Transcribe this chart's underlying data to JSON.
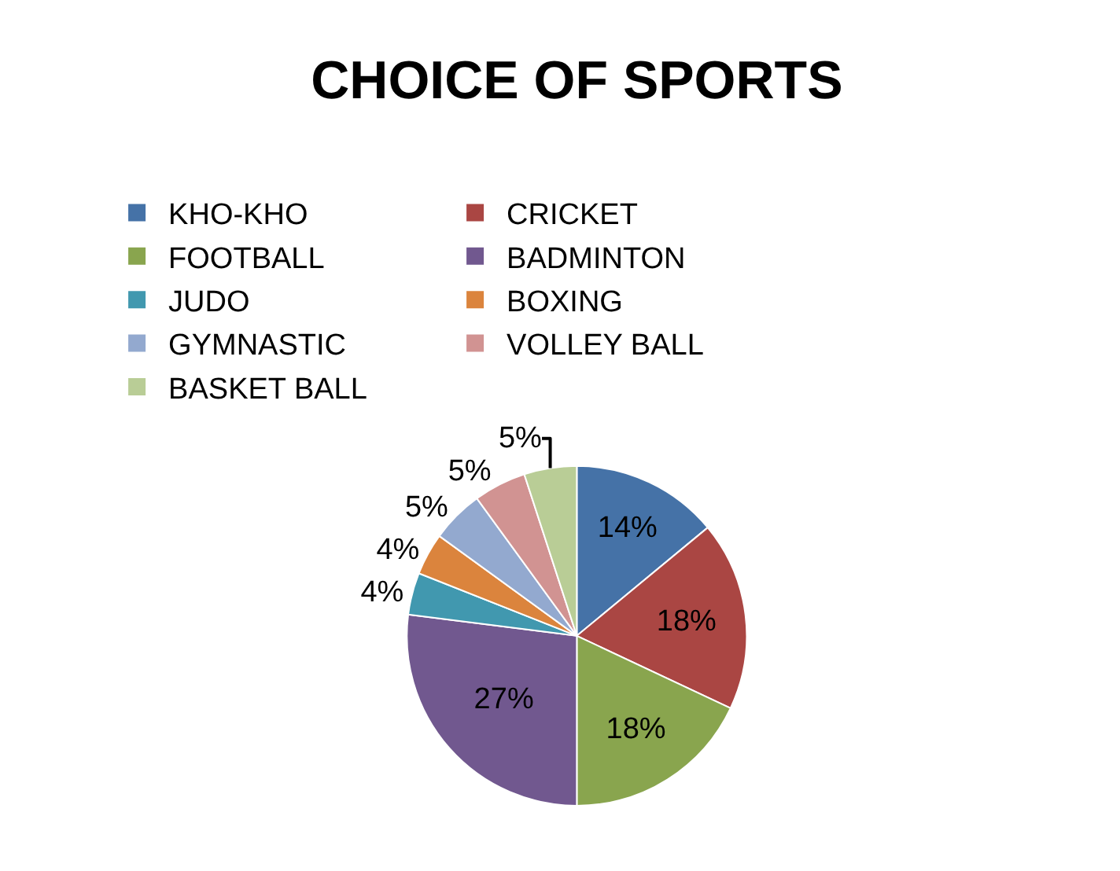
{
  "chart_data": {
    "type": "pie",
    "title": "CHOICE OF SPORTS",
    "categories": [
      "KHO-KHO",
      "CRICKET",
      "FOOTBALL",
      "BADMINTON",
      "JUDO",
      "BOXING",
      "GYMNASTIC",
      "VOLLEY BALL",
      "BASKET BALL"
    ],
    "values": [
      14,
      18,
      18,
      27,
      4,
      4,
      5,
      5,
      5
    ],
    "value_labels": [
      "14%",
      "18%",
      "18%",
      "27%",
      "4%",
      "4%",
      "5%",
      "5%",
      "5%"
    ],
    "colors": [
      "#4572a7",
      "#aa4643",
      "#89a54e",
      "#71588f",
      "#4198af",
      "#db843d",
      "#93a9cf",
      "#d19392",
      "#b9cd96"
    ],
    "legend": "top"
  }
}
